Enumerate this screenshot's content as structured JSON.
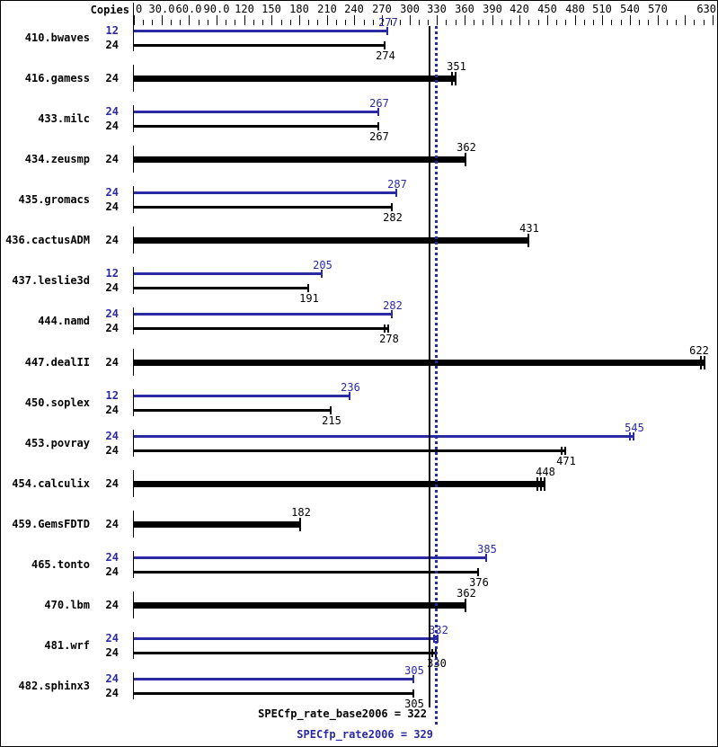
{
  "header": {
    "copies_label": "Copies"
  },
  "colors": {
    "peak_blue": "#2a2aa2",
    "base_black": "#000000",
    "background": "#ffffff"
  },
  "axis": {
    "min": 0,
    "max": 640,
    "minor_step": 10,
    "major_step": 30,
    "labels": [
      {
        "v": 0,
        "t": "0"
      },
      {
        "v": 30,
        "t": "30.0"
      },
      {
        "v": 60,
        "t": "60.0"
      },
      {
        "v": 90,
        "t": "90.0"
      },
      {
        "v": 120,
        "t": "120"
      },
      {
        "v": 150,
        "t": "150"
      },
      {
        "v": 180,
        "t": "180"
      },
      {
        "v": 210,
        "t": "210"
      },
      {
        "v": 240,
        "t": "240"
      },
      {
        "v": 270,
        "t": "270"
      },
      {
        "v": 300,
        "t": "300"
      },
      {
        "v": 330,
        "t": "330"
      },
      {
        "v": 360,
        "t": "360"
      },
      {
        "v": 390,
        "t": "390"
      },
      {
        "v": 420,
        "t": "420"
      },
      {
        "v": 450,
        "t": "450"
      },
      {
        "v": 480,
        "t": "480"
      },
      {
        "v": 510,
        "t": "510"
      },
      {
        "v": 540,
        "t": "540"
      },
      {
        "v": 570,
        "t": "570"
      },
      {
        "v": 630,
        "t": "630"
      }
    ]
  },
  "summary": {
    "base": {
      "label": "SPECfp_rate_base2006 = 322",
      "value": 322
    },
    "peak": {
      "label": "SPECfp_rate2006 = 329",
      "value": 329
    }
  },
  "chart_data": {
    "type": "bar",
    "orientation": "horizontal",
    "title": "",
    "xlabel": "",
    "ylabel": "Copies",
    "xlim": [
      0,
      645
    ],
    "grid": false,
    "reference_lines": [
      {
        "name": "SPECfp_rate_base2006",
        "value": 322,
        "style": "solid",
        "color": "#000000"
      },
      {
        "name": "SPECfp_rate2006",
        "value": 329,
        "style": "dotted",
        "color": "#2a2aa2"
      }
    ],
    "benchmarks": [
      {
        "name": "410.bwaves",
        "bars": [
          {
            "kind": "peak",
            "copies": 12,
            "value": 277,
            "caps": 1
          },
          {
            "kind": "base",
            "copies": 24,
            "value": 274,
            "caps": 1
          }
        ]
      },
      {
        "name": "416.gamess",
        "bars": [
          {
            "kind": "base",
            "copies": 24,
            "value": 351,
            "single": true,
            "caps": 2
          }
        ]
      },
      {
        "name": "433.milc",
        "bars": [
          {
            "kind": "peak",
            "copies": 24,
            "value": 267,
            "caps": 1
          },
          {
            "kind": "base",
            "copies": 24,
            "value": 267,
            "caps": 1
          }
        ]
      },
      {
        "name": "434.zeusmp",
        "bars": [
          {
            "kind": "base",
            "copies": 24,
            "value": 362,
            "single": true,
            "caps": 1
          }
        ]
      },
      {
        "name": "435.gromacs",
        "bars": [
          {
            "kind": "peak",
            "copies": 24,
            "value": 287,
            "caps": 1
          },
          {
            "kind": "base",
            "copies": 24,
            "value": 282,
            "caps": 1
          }
        ]
      },
      {
        "name": "436.cactusADM",
        "bars": [
          {
            "kind": "base",
            "copies": 24,
            "value": 431,
            "single": true,
            "caps": 1
          }
        ]
      },
      {
        "name": "437.leslie3d",
        "bars": [
          {
            "kind": "peak",
            "copies": 12,
            "value": 205,
            "caps": 1
          },
          {
            "kind": "base",
            "copies": 24,
            "value": 191,
            "caps": 1
          }
        ]
      },
      {
        "name": "444.namd",
        "bars": [
          {
            "kind": "peak",
            "copies": 24,
            "value": 282,
            "caps": 1
          },
          {
            "kind": "base",
            "copies": 24,
            "value": 278,
            "caps": 2
          }
        ]
      },
      {
        "name": "447.dealII",
        "bars": [
          {
            "kind": "base",
            "copies": 24,
            "value": 622,
            "single": true,
            "caps": 2
          }
        ]
      },
      {
        "name": "450.soplex",
        "bars": [
          {
            "kind": "peak",
            "copies": 12,
            "value": 236,
            "caps": 1
          },
          {
            "kind": "base",
            "copies": 24,
            "value": 215,
            "caps": 1
          }
        ]
      },
      {
        "name": "453.povray",
        "bars": [
          {
            "kind": "peak",
            "copies": 24,
            "value": 545,
            "caps": 2
          },
          {
            "kind": "base",
            "copies": 24,
            "value": 471,
            "caps": 2
          }
        ]
      },
      {
        "name": "454.calculix",
        "bars": [
          {
            "kind": "base",
            "copies": 24,
            "value": 448,
            "single": true,
            "caps": 3
          }
        ]
      },
      {
        "name": "459.GemsFDTD",
        "bars": [
          {
            "kind": "base",
            "copies": 24,
            "value": 182,
            "single": true,
            "caps": 1
          }
        ]
      },
      {
        "name": "465.tonto",
        "bars": [
          {
            "kind": "peak",
            "copies": 24,
            "value": 385,
            "caps": 1
          },
          {
            "kind": "base",
            "copies": 24,
            "value": 376,
            "caps": 1
          }
        ]
      },
      {
        "name": "470.lbm",
        "bars": [
          {
            "kind": "base",
            "copies": 24,
            "value": 362,
            "single": true,
            "caps": 1
          }
        ]
      },
      {
        "name": "481.wrf",
        "bars": [
          {
            "kind": "peak",
            "copies": 24,
            "value": 332,
            "caps": 2
          },
          {
            "kind": "base",
            "copies": 24,
            "value": 330,
            "caps": 2
          }
        ]
      },
      {
        "name": "482.sphinx3",
        "bars": [
          {
            "kind": "peak",
            "copies": 24,
            "value": 305,
            "caps": 1
          },
          {
            "kind": "base",
            "copies": 24,
            "value": 305,
            "caps": 1
          }
        ]
      }
    ]
  }
}
